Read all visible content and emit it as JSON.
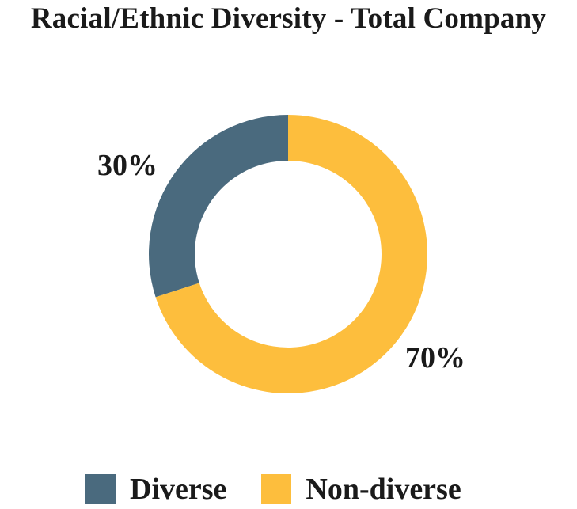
{
  "chart_data": {
    "type": "pie",
    "variant": "donut",
    "title": "Racial/Ethnic Diversity - Total Company",
    "slices": [
      {
        "name": "Diverse",
        "value": 30,
        "label": "30%",
        "color": "#4a6a7e"
      },
      {
        "name": "Non-diverse",
        "value": 70,
        "label": "70%",
        "color": "#fdbe3d"
      }
    ],
    "legend_position": "bottom"
  }
}
